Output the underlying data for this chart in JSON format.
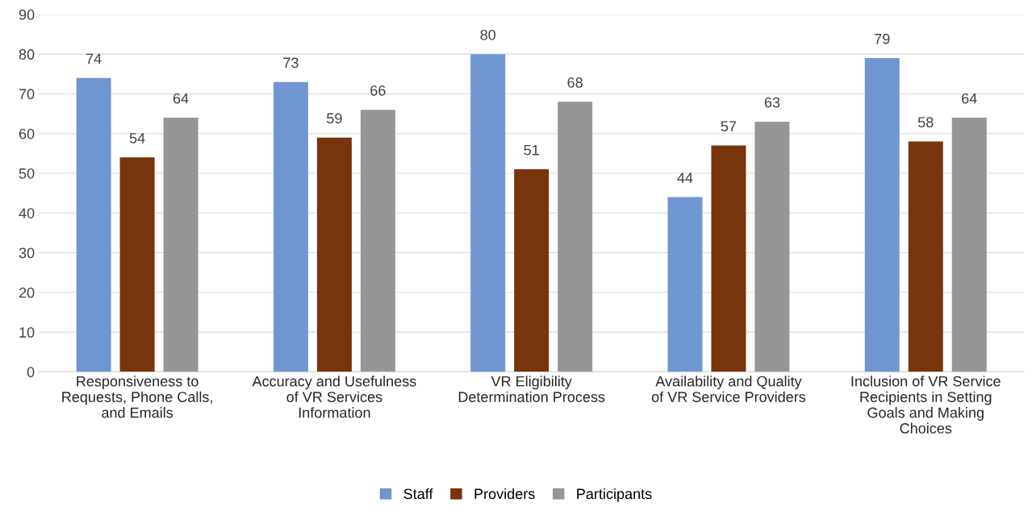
{
  "chart_data": {
    "type": "bar",
    "categories": [
      "Responsiveness to\nRequests, Phone Calls,\nand Emails",
      "Accuracy and Usefulness\nof VR Services\nInformation",
      "VR Eligibility\nDetermination Process",
      "Availability and Quality\nof VR Service Providers",
      "Inclusion of VR Service\nRecipients in Setting\nGoals and Making\nChoices"
    ],
    "series": [
      {
        "name": "Staff",
        "color": "#7096d1",
        "values": [
          74,
          73,
          80,
          44,
          79
        ]
      },
      {
        "name": "Providers",
        "color": "#77340d",
        "values": [
          54,
          59,
          51,
          57,
          58
        ]
      },
      {
        "name": "Participants",
        "color": "#969696",
        "values": [
          64,
          66,
          68,
          63,
          64
        ]
      }
    ],
    "ylim": [
      0,
      90
    ],
    "yticks": [
      0,
      10,
      20,
      30,
      40,
      50,
      60,
      70,
      80,
      90
    ],
    "grid": "y",
    "legend": "bottom",
    "data_labels": true
  }
}
